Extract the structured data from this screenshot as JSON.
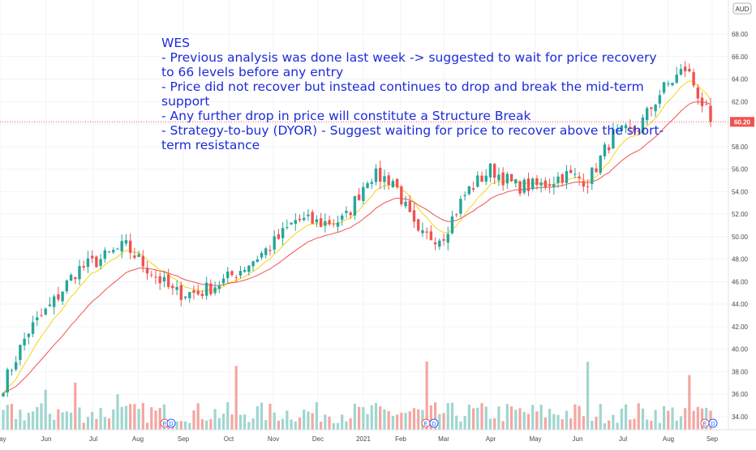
{
  "chart_data": {
    "type": "candlestick",
    "symbol_badge": "AUD",
    "annotation": "WES\n- Previous analysis was done last week -> suggested to wait for price recovery to 66 levels before any entry\n- Price did not recover but instead continues to drop and break the mid-term support\n- Any further drop in price will constitute a Structure Break\n- Strategy-to-buy (DYOR) - Suggest waiting for price to recover above the short-term resistance",
    "current_price": 60.2,
    "ylim": [
      33.2,
      69.5
    ],
    "y_ticks": [
      "68.00",
      "66.00",
      "64.00",
      "62.00",
      "60.00",
      "58.00",
      "56.00",
      "54.00",
      "52.00",
      "50.00",
      "48.00",
      "46.00",
      "44.00",
      "42.00",
      "40.00",
      "38.00",
      "36.00",
      "34.00"
    ],
    "x_labels": [
      "May",
      "Jun",
      "Jul",
      "Aug",
      "Sep",
      "Oct",
      "Nov",
      "Dec",
      "2021",
      "Feb",
      "Mar",
      "Apr",
      "May",
      "Jun",
      "Jul",
      "Aug",
      "Sep"
    ],
    "event_markers": [
      "E",
      "D",
      "E",
      "D",
      "E",
      "D"
    ],
    "price_anchors": [
      [
        "May",
        36.8
      ],
      [
        "Jun",
        41.5
      ],
      [
        "Jun",
        44.0
      ],
      [
        "Jul",
        47.0
      ],
      [
        "Aug",
        48.0
      ],
      [
        "Aug",
        49.2
      ],
      [
        "Sep",
        47.0
      ],
      [
        "Sep",
        45.0
      ],
      [
        "Oct",
        45.0
      ],
      [
        "Oct",
        46.0
      ],
      [
        "Nov",
        47.5
      ],
      [
        "Nov",
        49.2
      ],
      [
        "Dec",
        51.5
      ],
      [
        "Dec",
        51.2
      ],
      [
        "2021",
        51.5
      ],
      [
        "Feb",
        55.5
      ],
      [
        "Feb",
        55.0
      ],
      [
        "Mar",
        50.0
      ],
      [
        "Mar",
        50.0
      ],
      [
        "Apr",
        54.0
      ],
      [
        "Apr",
        56.0
      ],
      [
        "May",
        54.5
      ],
      [
        "May",
        54.5
      ],
      [
        "Jun",
        55.5
      ],
      [
        "Jun",
        55.0
      ],
      [
        "Jul",
        59.0
      ],
      [
        "Jul",
        59.5
      ],
      [
        "Aug",
        63.0
      ],
      [
        "Aug",
        65.0
      ],
      [
        "Sep",
        60.2
      ]
    ],
    "moving_averages": [
      {
        "color": "#f5d514",
        "role": "short-term"
      },
      {
        "color": "#ef5350",
        "role": "mid-term"
      }
    ],
    "colors": {
      "up": "#26a69a",
      "down": "#ef5350",
      "vol_up": "#9fd6cf",
      "vol_down": "#f4a6a2",
      "price_line": "#ef5350",
      "annotation": "#1c2cd6"
    }
  }
}
